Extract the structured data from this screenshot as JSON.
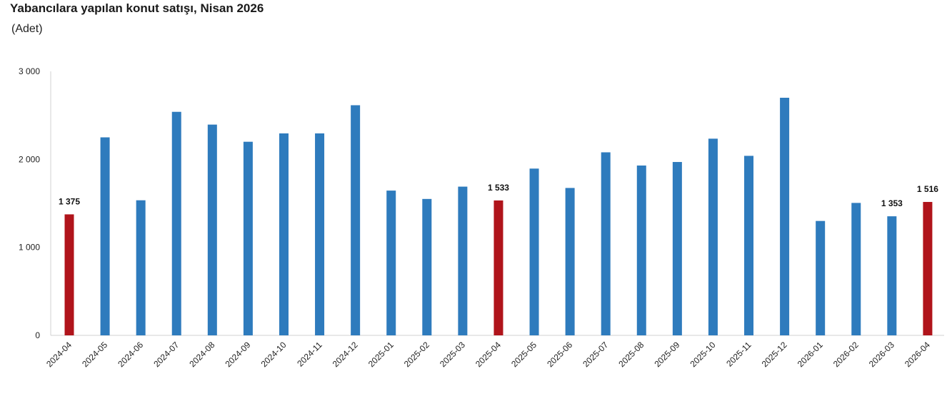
{
  "title": "Yabancılara yapılan konut satışı, Nisan 2026",
  "subtitle": "(Adet)",
  "chart_data": {
    "type": "bar",
    "title": "Yabancılara yapılan konut satışı, Nisan 2026",
    "subtitle": "(Adet)",
    "xlabel": "",
    "ylabel": "",
    "ylim": [
      0,
      3000
    ],
    "yticks": [
      0,
      1000,
      2000,
      3000
    ],
    "ytick_labels": [
      "0",
      "1 000",
      "2 000",
      "3 000"
    ],
    "grid": false,
    "legend": "none",
    "colors": {
      "default": "#2e7bbd",
      "highlight": "#b0141b"
    },
    "categories": [
      "2024-04",
      "2024-05",
      "2024-06",
      "2024-07",
      "2024-08",
      "2024-09",
      "2024-10",
      "2024-11",
      "2024-12",
      "2025-01",
      "2025-02",
      "2025-03",
      "2025-04",
      "2025-05",
      "2025-06",
      "2025-07",
      "2025-08",
      "2025-09",
      "2025-10",
      "2025-11",
      "2025-12",
      "2026-01",
      "2026-02",
      "2026-03",
      "2026-04"
    ],
    "values": [
      1375,
      2250,
      1535,
      2540,
      2395,
      2200,
      2295,
      2295,
      2615,
      1645,
      1550,
      1690,
      1533,
      1895,
      1675,
      2080,
      1930,
      1970,
      2235,
      2040,
      2700,
      1300,
      1505,
      1353,
      1516
    ],
    "highlight": [
      true,
      false,
      false,
      false,
      false,
      false,
      false,
      false,
      false,
      false,
      false,
      false,
      true,
      false,
      false,
      false,
      false,
      false,
      false,
      false,
      false,
      false,
      false,
      false,
      true
    ],
    "data_labels": [
      {
        "index": 0,
        "text": "1 375"
      },
      {
        "index": 12,
        "text": "1 533"
      },
      {
        "index": 23,
        "text": "1 353"
      },
      {
        "index": 24,
        "text": "1 516"
      }
    ]
  }
}
